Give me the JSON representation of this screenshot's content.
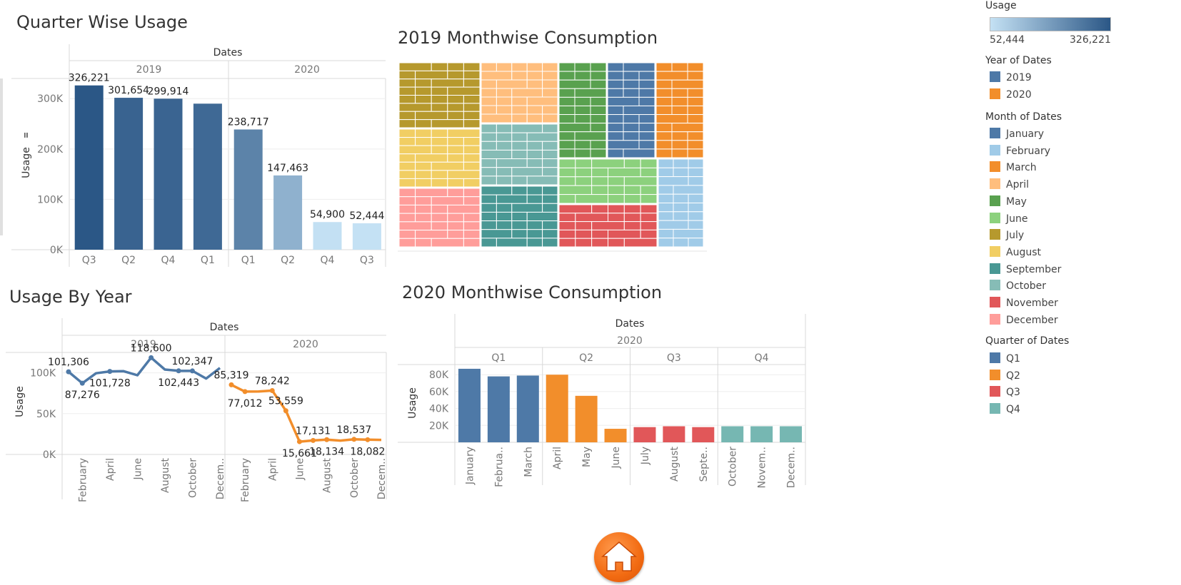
{
  "titles": {
    "quarter": "Quarter Wise Usage",
    "treemap2019": "2019 Monthwise Consumption",
    "year": "Usage By Year",
    "monthly2020": "2020 Monthwise Consumption"
  },
  "colors": {
    "q1": "#4e79a7",
    "q2": "#f28e2b",
    "q3": "#e15759",
    "q4": "#76b7b2",
    "y2019": "#4e79a7",
    "y2020": "#f28e2b",
    "seqLow": "#c4e1f4",
    "seqHigh": "#2b5786"
  },
  "legend": {
    "usage": {
      "title": "Usage",
      "min": "52,444",
      "max": "326,221"
    },
    "year": {
      "title": "Year of Dates",
      "items": [
        {
          "label": "2019",
          "color": "#4e79a7"
        },
        {
          "label": "2020",
          "color": "#f28e2b"
        }
      ]
    },
    "month": {
      "title": "Month of Dates",
      "items": [
        {
          "label": "January",
          "color": "#4e79a7"
        },
        {
          "label": "February",
          "color": "#a0cbe8"
        },
        {
          "label": "March",
          "color": "#f28e2b"
        },
        {
          "label": "April",
          "color": "#ffbe7d"
        },
        {
          "label": "May",
          "color": "#59a14f"
        },
        {
          "label": "June",
          "color": "#8cd17d"
        },
        {
          "label": "July",
          "color": "#b6992d"
        },
        {
          "label": "August",
          "color": "#f1ce63"
        },
        {
          "label": "September",
          "color": "#499894"
        },
        {
          "label": "October",
          "color": "#86bcb6"
        },
        {
          "label": "November",
          "color": "#e15759"
        },
        {
          "label": "December",
          "color": "#ff9d9a"
        }
      ]
    },
    "quarter": {
      "title": "Quarter of Dates",
      "items": [
        {
          "label": "Q1",
          "color": "#4e79a7"
        },
        {
          "label": "Q2",
          "color": "#f28e2b"
        },
        {
          "label": "Q3",
          "color": "#e15759"
        },
        {
          "label": "Q4",
          "color": "#76b7b2"
        }
      ]
    }
  },
  "home": {
    "icon": "home-icon"
  },
  "chart_data": [
    {
      "id": "quarter",
      "type": "bar",
      "title": "Quarter Wise Usage",
      "header": "Dates",
      "ylabel": "Usage",
      "ylim": [
        0,
        340000
      ],
      "yticks": [
        {
          "value": 0,
          "label": "0K"
        },
        {
          "value": 100000,
          "label": "100K"
        },
        {
          "value": 200000,
          "label": "200K"
        },
        {
          "value": 300000,
          "label": "300K"
        }
      ],
      "groups": [
        {
          "name": "2019",
          "bars": [
            {
              "category": "Q3",
              "value": 326221,
              "label": "326,221"
            },
            {
              "category": "Q2",
              "value": 301654,
              "label": "301,654"
            },
            {
              "category": "Q4",
              "value": 299914,
              "label": "299,914"
            },
            {
              "category": "Q1",
              "value": 290000,
              "label": ""
            }
          ]
        },
        {
          "name": "2020",
          "bars": [
            {
              "category": "Q1",
              "value": 238717,
              "label": "238,717"
            },
            {
              "category": "Q2",
              "value": 147463,
              "label": "147,463"
            },
            {
              "category": "Q4",
              "value": 54900,
              "label": "54,900"
            },
            {
              "category": "Q3",
              "value": 52444,
              "label": "52,444"
            }
          ]
        }
      ],
      "color_scale": {
        "min": 52444,
        "max": 326221,
        "from": "#c4e1f4",
        "to": "#2b5786"
      }
    },
    {
      "id": "treemap2019",
      "type": "treemap",
      "title": "2019 Monthwise Consumption",
      "months": [
        {
          "month": "July",
          "color": "#b6992d"
        },
        {
          "month": "August",
          "color": "#f1ce63"
        },
        {
          "month": "December",
          "color": "#ff9d9a"
        },
        {
          "month": "April",
          "color": "#ffbe7d"
        },
        {
          "month": "October",
          "color": "#86bcb6"
        },
        {
          "month": "September",
          "color": "#499894"
        },
        {
          "month": "May",
          "color": "#59a14f"
        },
        {
          "month": "January",
          "color": "#4e79a7"
        },
        {
          "month": "March",
          "color": "#f28e2b"
        },
        {
          "month": "June",
          "color": "#8cd17d"
        },
        {
          "month": "November",
          "color": "#e15759"
        },
        {
          "month": "February",
          "color": "#a0cbe8"
        }
      ]
    },
    {
      "id": "year",
      "type": "line",
      "title": "Usage By Year",
      "header": "Dates",
      "ylabel": "Usage",
      "ylim": [
        0,
        125000
      ],
      "yticks": [
        {
          "value": 0,
          "label": "0K"
        },
        {
          "value": 50000,
          "label": "50K"
        },
        {
          "value": 100000,
          "label": "100K"
        }
      ],
      "xticks": [
        "February",
        "April",
        "June",
        "August",
        "October",
        "Decem.."
      ],
      "series": [
        {
          "name": "2019",
          "color": "#4e79a7",
          "values": [
            {
              "value": 101306,
              "label": "101,306",
              "pos": "above"
            },
            {
              "value": 87276,
              "label": "87,276",
              "pos": "below"
            },
            {
              "value": 99500,
              "label": "",
              "pos": "above"
            },
            {
              "value": 101728,
              "label": "101,728",
              "pos": "below"
            },
            {
              "value": 102000,
              "label": "",
              "pos": "above"
            },
            {
              "value": 97000,
              "label": "",
              "pos": "above"
            },
            {
              "value": 118600,
              "label": "118,600",
              "pos": "above"
            },
            {
              "value": 104000,
              "label": "",
              "pos": "above"
            },
            {
              "value": 102443,
              "label": "102,443",
              "pos": "below"
            },
            {
              "value": 102347,
              "label": "102,347",
              "pos": "above"
            },
            {
              "value": 93000,
              "label": "",
              "pos": "above"
            },
            {
              "value": 106000,
              "label": "",
              "pos": "above"
            }
          ]
        },
        {
          "name": "2020",
          "color": "#f28e2b",
          "values": [
            {
              "value": 85319,
              "label": "85,319",
              "pos": "above"
            },
            {
              "value": 77012,
              "label": "77,012",
              "pos": "below"
            },
            {
              "value": 77200,
              "label": "",
              "pos": "above"
            },
            {
              "value": 78242,
              "label": "78,242",
              "pos": "above"
            },
            {
              "value": 53559,
              "label": "53,559",
              "pos": "above"
            },
            {
              "value": 15661,
              "label": "15,661",
              "pos": "below"
            },
            {
              "value": 17131,
              "label": "17,131",
              "pos": "above"
            },
            {
              "value": 18134,
              "label": "18,134",
              "pos": "below"
            },
            {
              "value": 17000,
              "label": "",
              "pos": "above"
            },
            {
              "value": 18537,
              "label": "18,537",
              "pos": "above"
            },
            {
              "value": 18082,
              "label": "18,082",
              "pos": "below"
            },
            {
              "value": 17800,
              "label": "",
              "pos": "above"
            }
          ]
        }
      ]
    },
    {
      "id": "monthly2020",
      "type": "bar",
      "title": "2020 Monthwise Consumption",
      "header": "Dates",
      "year": "2020",
      "ylabel": "Usage",
      "ylim": [
        0,
        92000
      ],
      "yticks": [
        {
          "value": 20000,
          "label": "20K"
        },
        {
          "value": 40000,
          "label": "40K"
        },
        {
          "value": 60000,
          "label": "60K"
        },
        {
          "value": 80000,
          "label": "80K"
        }
      ],
      "quarters": [
        {
          "name": "Q1",
          "color": "#4e79a7",
          "bars": [
            {
              "category": "January",
              "value": 87000
            },
            {
              "category": "Februa..",
              "value": 78000
            },
            {
              "category": "March",
              "value": 79000
            }
          ]
        },
        {
          "name": "Q2",
          "color": "#f28e2b",
          "bars": [
            {
              "category": "April",
              "value": 80000
            },
            {
              "category": "May",
              "value": 55000
            },
            {
              "category": "June",
              "value": 16000
            }
          ]
        },
        {
          "name": "Q3",
          "color": "#e15759",
          "bars": [
            {
              "category": "July",
              "value": 18000
            },
            {
              "category": "August",
              "value": 19000
            },
            {
              "category": "Septe..",
              "value": 18000
            }
          ]
        },
        {
          "name": "Q4",
          "color": "#76b7b2",
          "bars": [
            {
              "category": "October",
              "value": 19000
            },
            {
              "category": "Novem..",
              "value": 19000
            },
            {
              "category": "Decem..",
              "value": 19000
            }
          ]
        }
      ]
    }
  ]
}
